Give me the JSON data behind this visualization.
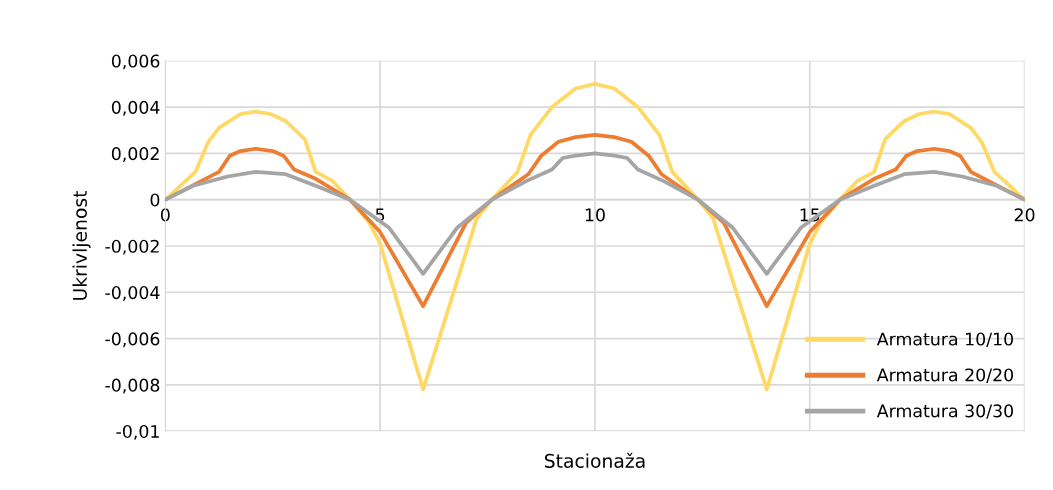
{
  "chart_data": {
    "type": "line",
    "xlabel": "Stacionaža",
    "ylabel": "Ukrivljenost",
    "xlim": [
      0,
      20
    ],
    "xticks": [
      0,
      5,
      10,
      15,
      20
    ],
    "ylim": [
      -0.01,
      0.006
    ],
    "yticks": [
      {
        "value": -0.01,
        "label": "-0,01"
      },
      {
        "value": -0.008,
        "label": "-0,008"
      },
      {
        "value": -0.006,
        "label": "-0,006"
      },
      {
        "value": -0.004,
        "label": "-0,004"
      },
      {
        "value": -0.002,
        "label": "-0,002"
      },
      {
        "value": 0,
        "label": "0"
      },
      {
        "value": 0.002,
        "label": "0,002"
      },
      {
        "value": 0.004,
        "label": "0,004"
      },
      {
        "value": 0.006,
        "label": "0,006"
      }
    ],
    "grid": true,
    "legend": "bottom right",
    "marker": "none",
    "line_style": "solid",
    "series": [
      {
        "name": "Armatura 10/10",
        "color": "#ffd966",
        "x": [
          0,
          0.7,
          1,
          1.25,
          1.75,
          2.1,
          2.45,
          2.8,
          3.25,
          3.5,
          3.9,
          4.3,
          4.75,
          5,
          6,
          7.25,
          7.6,
          8.2,
          8.5,
          9,
          9.55,
          10,
          10.45,
          11,
          11.5,
          11.8,
          12.4,
          12.75,
          14,
          15,
          15.25,
          15.7,
          16.1,
          16.5,
          16.75,
          17.2,
          17.55,
          17.9,
          18.25,
          18.75,
          19,
          19.3,
          20
        ],
        "values": [
          0,
          0.0012,
          0.0025,
          0.0031,
          0.0037,
          0.0038,
          0.0037,
          0.0034,
          0.0026,
          0.0012,
          0.0008,
          0,
          -0.001,
          -0.0019,
          -0.0082,
          -0.0008,
          0,
          0.0012,
          0.0028,
          0.004,
          0.0048,
          0.005,
          0.0048,
          0.004,
          0.0028,
          0.0012,
          0,
          -0.0008,
          -0.0082,
          -0.0019,
          -0.001,
          0,
          0.0008,
          0.0012,
          0.0026,
          0.0034,
          0.0037,
          0.0038,
          0.0037,
          0.0031,
          0.0025,
          0.0012,
          0
        ]
      },
      {
        "name": "Armatura 20/20",
        "color": "#ed7d31",
        "x": [
          0,
          1.25,
          1.5,
          1.75,
          2.1,
          2.5,
          2.75,
          3,
          3.5,
          4.3,
          5,
          6,
          7,
          7.6,
          8.45,
          8.75,
          9.15,
          9.55,
          10,
          10.45,
          10.85,
          11.25,
          11.55,
          12.4,
          13,
          14,
          15,
          15.7,
          16.5,
          17,
          17.25,
          17.5,
          17.9,
          18.25,
          18.5,
          18.75,
          20
        ],
        "values": [
          0,
          0.0012,
          0.0019,
          0.0021,
          0.0022,
          0.0021,
          0.0019,
          0.0013,
          0.0009,
          0,
          -0.0014,
          -0.0046,
          -0.001,
          0,
          0.0011,
          0.0019,
          0.0025,
          0.0027,
          0.0028,
          0.0027,
          0.0025,
          0.0019,
          0.0011,
          0,
          -0.001,
          -0.0046,
          -0.0014,
          0,
          0.0009,
          0.0013,
          0.0019,
          0.0021,
          0.0022,
          0.0021,
          0.0019,
          0.0012,
          0
        ]
      },
      {
        "name": "Armatura 30/30",
        "color": "#a5a5a5",
        "x": [
          0,
          0.65,
          1.45,
          2.1,
          2.8,
          3.5,
          4.3,
          5.2,
          6,
          6.8,
          7.6,
          8.4,
          9,
          9.25,
          9.55,
          10,
          10.45,
          10.75,
          11,
          11.6,
          12.4,
          13.2,
          14,
          14.8,
          15.7,
          16.5,
          17.2,
          17.9,
          18.55,
          19.35,
          20
        ],
        "values": [
          0,
          0.0006,
          0.001,
          0.0012,
          0.0011,
          0.0006,
          0,
          -0.0012,
          -0.0032,
          -0.0012,
          0,
          0.0008,
          0.0013,
          0.0018,
          0.0019,
          0.002,
          0.0019,
          0.0018,
          0.0013,
          0.0008,
          0,
          -0.0012,
          -0.0032,
          -0.0012,
          0,
          0.0006,
          0.0011,
          0.0012,
          0.001,
          0.0006,
          0
        ]
      }
    ]
  }
}
